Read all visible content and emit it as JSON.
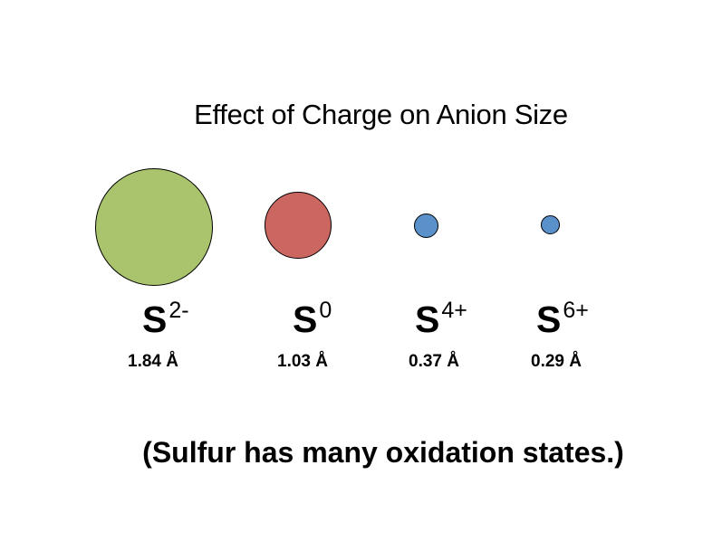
{
  "title": "Effect of Charge on Anion Size",
  "ions": [
    {
      "element": "S",
      "charge": "2-",
      "radius": "1.84 Å",
      "color": "#a9c46d"
    },
    {
      "element": "S",
      "charge": "0",
      "radius": "1.03 Å",
      "color": "#cc6660"
    },
    {
      "element": "S",
      "charge": "4+",
      "radius": "0.37 Å",
      "color": "#5a91cb"
    },
    {
      "element": "S",
      "charge": "6+",
      "radius": "0.29 Å",
      "color": "#5a91cb"
    }
  ],
  "caption": "(Sulfur has many oxidation states.)"
}
